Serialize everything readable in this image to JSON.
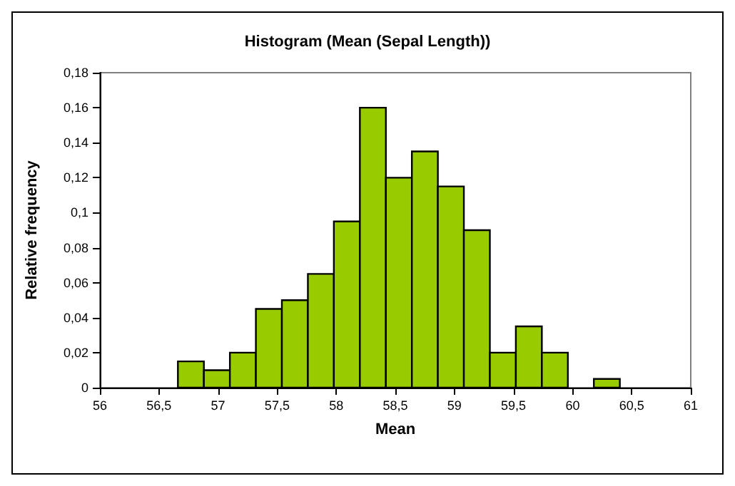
{
  "chart_data": {
    "type": "histogram",
    "title": "Histogram (Mean (Sepal Length))",
    "xlabel": "Mean",
    "ylabel": "Relative frequency",
    "bins": [
      56.66,
      56.88,
      57.1,
      57.32,
      57.54,
      57.76,
      57.98,
      58.2,
      58.42,
      58.64,
      58.86,
      59.08,
      59.3,
      59.52,
      59.74,
      59.96,
      60.18,
      60.4
    ],
    "values": [
      0.015,
      0.01,
      0.02,
      0.045,
      0.05,
      0.065,
      0.095,
      0.16,
      0.12,
      0.135,
      0.115,
      0.09,
      0.02,
      0.035,
      0.02,
      0,
      0.005
    ],
    "color": "#99cc00",
    "xlim": [
      56,
      61
    ],
    "xticks": [
      56,
      {
        "value": 56.5,
        "label": "56,5"
      },
      57,
      {
        "value": 57.5,
        "label": "57,5"
      },
      58,
      {
        "value": 58.5,
        "label": "58,5"
      },
      59,
      {
        "value": 59.5,
        "label": "59,5"
      },
      60,
      {
        "value": 60.5,
        "label": "60,5"
      },
      61
    ],
    "ylim": [
      0,
      0.18
    ],
    "yticks": [
      0,
      {
        "value": 0.02,
        "label": "0,02"
      },
      {
        "value": 0.04,
        "label": "0,04"
      },
      {
        "value": 0.06,
        "label": "0,06"
      },
      {
        "value": 0.08,
        "label": "0,08"
      },
      {
        "value": 0.1,
        "label": "0,1"
      },
      {
        "value": 0.12,
        "label": "0,12"
      },
      {
        "value": 0.14,
        "label": "0,14"
      },
      {
        "value": 0.16,
        "label": "0,16"
      },
      {
        "value": 0.18,
        "label": "0,18"
      }
    ],
    "grid": false
  }
}
